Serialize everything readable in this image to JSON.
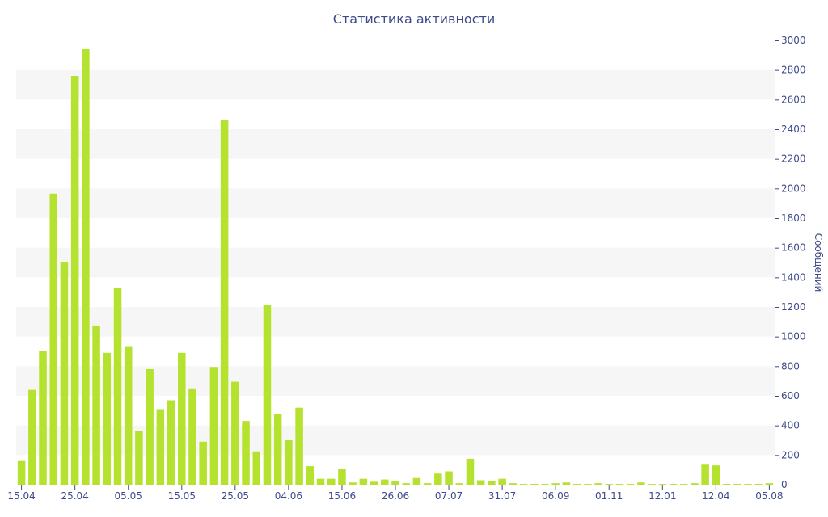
{
  "chart_data": {
    "type": "bar",
    "title": "Статистика активности",
    "ylabel": "Сообщений",
    "xlabel": "",
    "ylim": [
      0,
      3000
    ],
    "y_ticks": [
      0,
      200,
      400,
      600,
      800,
      1000,
      1200,
      1400,
      1600,
      1800,
      2000,
      2200,
      2400,
      2600,
      2800,
      3000
    ],
    "y_axis_side": "right",
    "grid": "alternating horizontal bands",
    "legend": "none",
    "colors": {
      "bar": "#b5e12f",
      "text": "#3e4a8a",
      "band": "#f6f6f6",
      "axis": "#3e4a8a"
    },
    "x_tick_labels": [
      {
        "label": "15.04",
        "index": 0
      },
      {
        "label": "25.04",
        "index": 5
      },
      {
        "label": "05.05",
        "index": 10
      },
      {
        "label": "15.05",
        "index": 15
      },
      {
        "label": "25.05",
        "index": 20
      },
      {
        "label": "04.06",
        "index": 25
      },
      {
        "label": "15.06",
        "index": 30
      },
      {
        "label": "26.06",
        "index": 35
      },
      {
        "label": "07.07",
        "index": 40
      },
      {
        "label": "31.07",
        "index": 45
      },
      {
        "label": "06.09",
        "index": 50
      },
      {
        "label": "01.11",
        "index": 55
      },
      {
        "label": "12.01",
        "index": 60
      },
      {
        "label": "12.04",
        "index": 65
      },
      {
        "label": "05.08",
        "index": 70
      }
    ],
    "values": [
      160,
      640,
      905,
      1965,
      1505,
      2760,
      2940,
      1075,
      890,
      1330,
      935,
      365,
      780,
      510,
      570,
      890,
      650,
      290,
      795,
      2465,
      695,
      430,
      225,
      1215,
      475,
      300,
      520,
      125,
      40,
      40,
      105,
      15,
      40,
      20,
      35,
      25,
      10,
      45,
      10,
      75,
      90,
      10,
      175,
      30,
      25,
      40,
      10,
      5,
      5,
      5,
      10,
      15,
      5,
      5,
      10,
      5,
      5,
      5,
      15,
      5,
      5,
      5,
      5,
      10,
      135,
      130,
      5,
      5,
      5,
      5,
      10
    ]
  }
}
